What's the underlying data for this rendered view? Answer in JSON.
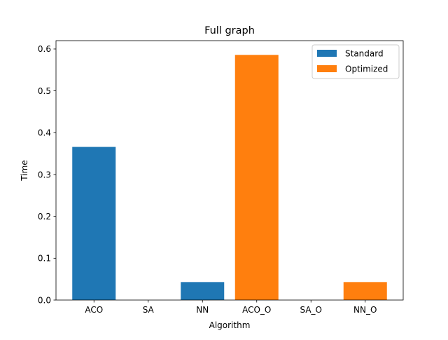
{
  "chart_data": {
    "type": "bar",
    "title": "Full graph",
    "xlabel": "Algorithm",
    "ylabel": "Time",
    "categories": [
      "ACO",
      "SA",
      "NN",
      "ACO_O",
      "SA_O",
      "NN_O"
    ],
    "ylim": [
      0,
      0.62
    ],
    "yticks": [
      "0.0",
      "0.1",
      "0.2",
      "0.3",
      "0.4",
      "0.5",
      "0.6"
    ],
    "grid": false,
    "legend_position": "top-right",
    "series": [
      {
        "name": "Standard",
        "color": "#1f77b4",
        "values": [
          0.366,
          0.0,
          0.043,
          null,
          null,
          null
        ]
      },
      {
        "name": "Optimized",
        "color": "#ff7f0e",
        "values": [
          null,
          null,
          null,
          0.586,
          0.0,
          0.043
        ]
      }
    ]
  }
}
